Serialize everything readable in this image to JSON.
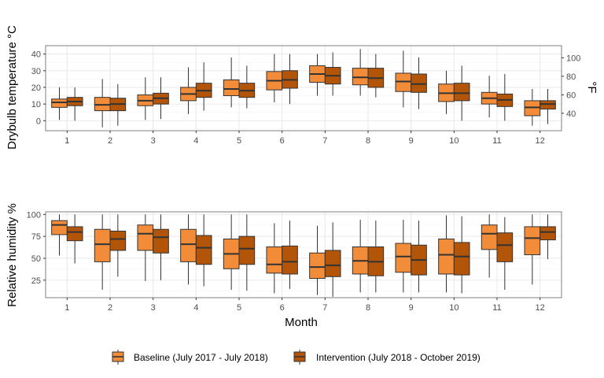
{
  "colors": {
    "baseline": "#F28C38",
    "intervention": "#B35509",
    "grid_major": "#EBEBEB",
    "grid_minor": "#F5F5F5",
    "panel_border": "#7F7F7F",
    "box_line": "#333333"
  },
  "chart_data": [
    {
      "type": "boxplot",
      "ylabel": "Drybulb temperature °C",
      "ylabel_secondary": "°F",
      "categories": [
        "1",
        "2",
        "3",
        "4",
        "5",
        "6",
        "7",
        "8",
        "9",
        "10",
        "11",
        "12"
      ],
      "ylim": [
        -6,
        45
      ],
      "y_ticks": [
        0,
        10,
        20,
        30,
        40
      ],
      "y_secondary_ticks": [
        40,
        60,
        80,
        100
      ],
      "grid": true,
      "series": [
        {
          "name": "Baseline (July 2017 - July 2018)",
          "boxes": [
            {
              "min": 0.5,
              "q1": 8,
              "median": 11,
              "q3": 13,
              "max": 20
            },
            {
              "min": -4,
              "q1": 6,
              "median": 9.5,
              "q3": 14,
              "max": 25
            },
            {
              "min": 0.5,
              "q1": 9,
              "median": 12,
              "q3": 15.5,
              "max": 26
            },
            {
              "min": 4,
              "q1": 12,
              "median": 16,
              "q3": 20,
              "max": 32
            },
            {
              "min": 8,
              "q1": 15,
              "median": 19,
              "q3": 24.5,
              "max": 38
            },
            {
              "min": 11,
              "q1": 18.5,
              "median": 24,
              "q3": 29.5,
              "max": 40
            },
            {
              "min": 15,
              "q1": 23,
              "median": 28,
              "q3": 33,
              "max": 40
            },
            {
              "min": 15,
              "q1": 21.5,
              "median": 26,
              "q3": 31.5,
              "max": 43
            },
            {
              "min": 8,
              "q1": 17.5,
              "median": 23.5,
              "q3": 28.5,
              "max": 42
            },
            {
              "min": 4,
              "q1": 11.5,
              "median": 16.5,
              "q3": 22,
              "max": 30
            },
            {
              "min": 2,
              "q1": 10,
              "median": 13.5,
              "q3": 17,
              "max": 27
            },
            {
              "min": -3,
              "q1": 3,
              "median": 8,
              "q3": 12,
              "max": 19
            }
          ]
        },
        {
          "name": "Intervention (July 2018 - October 2019)",
          "boxes": [
            {
              "min": 0,
              "q1": 9,
              "median": 11.5,
              "q3": 14,
              "max": 20
            },
            {
              "min": -3,
              "q1": 6,
              "median": 10,
              "q3": 13.5,
              "max": 22
            },
            {
              "min": 1,
              "q1": 10,
              "median": 13.5,
              "q3": 16.5,
              "max": 26
            },
            {
              "min": 6,
              "q1": 14,
              "median": 18,
              "q3": 22.5,
              "max": 35
            },
            {
              "min": 7.5,
              "q1": 14,
              "median": 18,
              "q3": 22.5,
              "max": 33
            },
            {
              "min": 10,
              "q1": 19.5,
              "median": 24.5,
              "q3": 30,
              "max": 40
            },
            {
              "min": 15,
              "q1": 22,
              "median": 27,
              "q3": 32,
              "max": 41
            },
            {
              "min": 14,
              "q1": 20,
              "median": 25.5,
              "q3": 31.5,
              "max": 40
            },
            {
              "min": 7,
              "q1": 17,
              "median": 22,
              "q3": 28,
              "max": 38
            },
            {
              "min": 0,
              "q1": 12,
              "median": 16.5,
              "q3": 22.5,
              "max": 33
            },
            {
              "min": 0,
              "q1": 8.5,
              "median": 12.5,
              "q3": 16,
              "max": 28
            },
            {
              "min": -2,
              "q1": 7,
              "median": 10,
              "q3": 12,
              "max": 19
            }
          ]
        }
      ]
    },
    {
      "type": "boxplot",
      "ylabel": "Relative humidity %",
      "xlabel": "Month",
      "categories": [
        "1",
        "2",
        "3",
        "4",
        "5",
        "6",
        "7",
        "8",
        "9",
        "10",
        "11",
        "12"
      ],
      "ylim": [
        5,
        103
      ],
      "y_ticks": [
        25,
        50,
        75,
        100
      ],
      "grid": true,
      "series": [
        {
          "name": "Baseline (July 2017 - July 2018)",
          "boxes": [
            {
              "min": 53,
              "q1": 77,
              "median": 88,
              "q3": 93,
              "max": 100
            },
            {
              "min": 14,
              "q1": 46,
              "median": 66,
              "q3": 83,
              "max": 100
            },
            {
              "min": 24,
              "q1": 59,
              "median": 78,
              "q3": 88,
              "max": 100
            },
            {
              "min": 20,
              "q1": 46,
              "median": 66,
              "q3": 83,
              "max": 100
            },
            {
              "min": 14,
              "q1": 38,
              "median": 55,
              "q3": 72,
              "max": 100
            },
            {
              "min": 10,
              "q1": 33,
              "median": 43,
              "q3": 63,
              "max": 90
            },
            {
              "min": 8,
              "q1": 27,
              "median": 40,
              "q3": 56,
              "max": 87
            },
            {
              "min": 11,
              "q1": 32,
              "median": 47,
              "q3": 63,
              "max": 94
            },
            {
              "min": 11,
              "q1": 34,
              "median": 52,
              "q3": 67,
              "max": 94
            },
            {
              "min": 11,
              "q1": 32,
              "median": 54,
              "q3": 72,
              "max": 99
            },
            {
              "min": 28,
              "q1": 60,
              "median": 78,
              "q3": 88,
              "max": 100
            },
            {
              "min": 20,
              "q1": 54,
              "median": 73,
              "q3": 86,
              "max": 100
            }
          ]
        },
        {
          "name": "Intervention (July 2018 - October 2019)",
          "boxes": [
            {
              "min": 44,
              "q1": 70,
              "median": 80,
              "q3": 86,
              "max": 100
            },
            {
              "min": 29,
              "q1": 59,
              "median": 72,
              "q3": 81,
              "max": 100
            },
            {
              "min": 25,
              "q1": 56,
              "median": 74,
              "q3": 83,
              "max": 100
            },
            {
              "min": 18,
              "q1": 43,
              "median": 62,
              "q3": 76,
              "max": 100
            },
            {
              "min": 13,
              "q1": 43,
              "median": 61,
              "q3": 75,
              "max": 100
            },
            {
              "min": 15,
              "q1": 32,
              "median": 46,
              "q3": 64,
              "max": 93
            },
            {
              "min": 6,
              "q1": 29,
              "median": 42,
              "q3": 59,
              "max": 91
            },
            {
              "min": 11,
              "q1": 30,
              "median": 46,
              "q3": 63,
              "max": 93
            },
            {
              "min": 11,
              "q1": 31,
              "median": 48,
              "q3": 65,
              "max": 93
            },
            {
              "min": 10,
              "q1": 31,
              "median": 52,
              "q3": 68,
              "max": 98
            },
            {
              "min": 14,
              "q1": 46,
              "median": 65,
              "q3": 79,
              "max": 97
            },
            {
              "min": 49,
              "q1": 71,
              "median": 80,
              "q3": 86,
              "max": 100
            }
          ]
        }
      ]
    }
  ],
  "legend": {
    "position": "bottom",
    "items": [
      "Baseline (July 2017 - July 2018)",
      "Intervention (July 2018 - October 2019)"
    ]
  }
}
